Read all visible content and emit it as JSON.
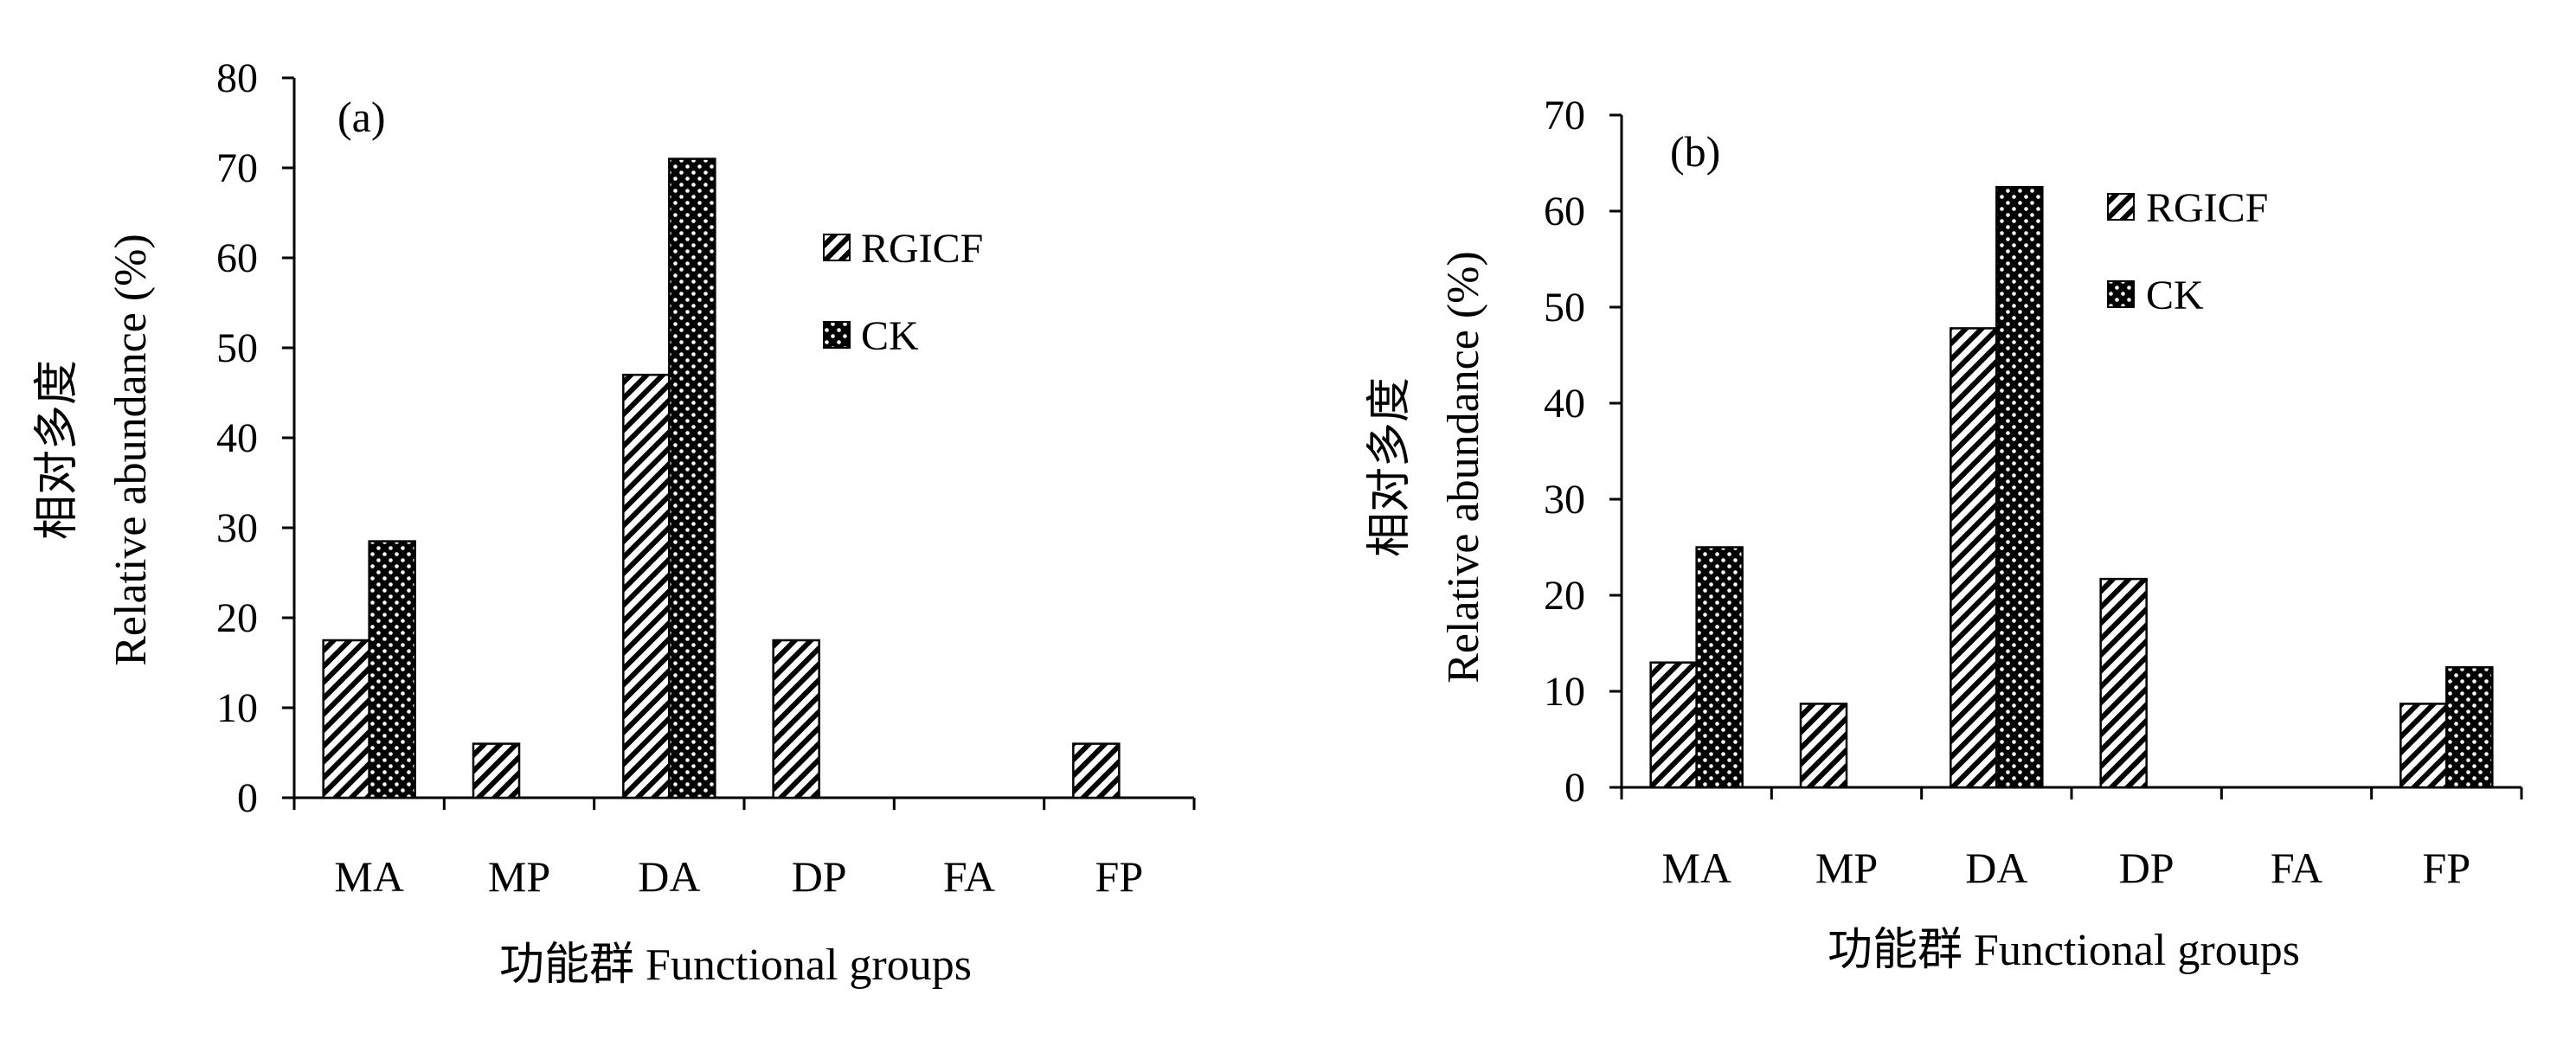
{
  "legend": {
    "series": [
      {
        "name": "RGICF",
        "pattern": "hatch"
      },
      {
        "name": "CK",
        "pattern": "dots"
      }
    ]
  },
  "colors": {
    "ink": "#000000",
    "background": "#ffffff"
  },
  "chart_data": [
    {
      "type": "bar",
      "panel": "(a)",
      "categories": [
        "MA",
        "MP",
        "DA",
        "DP",
        "FA",
        "FP"
      ],
      "series": [
        {
          "name": "RGICF",
          "values": [
            17.5,
            6,
            47,
            17.5,
            0,
            6
          ]
        },
        {
          "name": "CK",
          "values": [
            28.5,
            0,
            71,
            0,
            0,
            0
          ]
        }
      ],
      "xlabel": "功能群 Functional groups",
      "ylabel_cn": "相对多度",
      "ylabel": "Relative abundance (%)",
      "ylim": [
        0,
        80
      ],
      "yticks": [
        0,
        10,
        20,
        30,
        40,
        50,
        60,
        70,
        80
      ],
      "legend_position": "top-right",
      "grid": false
    },
    {
      "type": "bar",
      "panel": "(b)",
      "categories": [
        "MA",
        "MP",
        "DA",
        "DP",
        "FA",
        "FP"
      ],
      "series": [
        {
          "name": "RGICF",
          "values": [
            13,
            8.7,
            47.8,
            21.7,
            0,
            8.7
          ]
        },
        {
          "name": "CK",
          "values": [
            25,
            0,
            62.5,
            0,
            0,
            12.5
          ]
        }
      ],
      "xlabel": "功能群 Functional groups",
      "ylabel_cn": "相对多度",
      "ylabel": "Relative abundance (%)",
      "ylim": [
        0,
        70
      ],
      "yticks": [
        0,
        10,
        20,
        30,
        40,
        50,
        60,
        70
      ],
      "legend_position": "top-right",
      "grid": false
    }
  ]
}
